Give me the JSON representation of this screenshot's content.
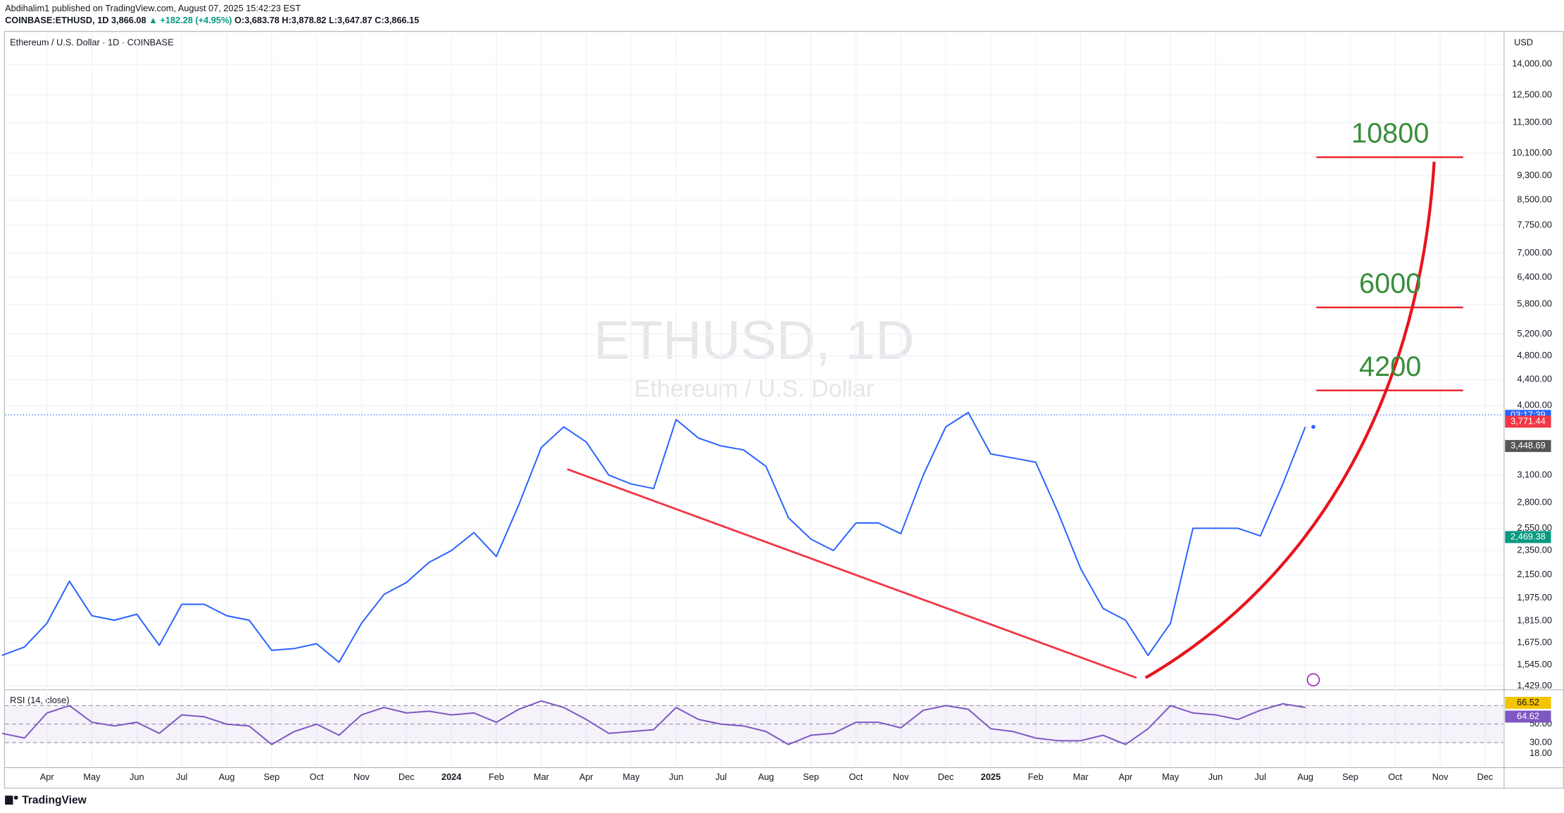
{
  "header": {
    "published": "Abdihalim1 published on TradingView.com, August 07, 2025 15:42:23 EST",
    "symbol": "COINBASE:ETHUSD, 1D",
    "price": "3,866.08",
    "change": "▲ +182.28 (+4.95%)",
    "ohlc": "O:3,683.78 H:3,878.82 L:3,647.87 C:3,866.15",
    "currency": "USD",
    "brand": "TradingView"
  },
  "chart_data": [
    {
      "type": "line",
      "title": "Ethereum / U.S. Dollar · 1D · COINBASE",
      "watermark": "ETHUSD, 1D",
      "watermark_sub": "Ethereum / U.S. Dollar",
      "color": "#2962ff",
      "log_scale": true,
      "grid": true,
      "categories": [
        null,
        null,
        "Apr",
        null,
        "May",
        null,
        "Jun",
        null,
        "Jul",
        null,
        "Aug",
        null,
        "Sep",
        null,
        "Oct",
        null,
        "Nov",
        null,
        "Dec",
        null,
        "2024",
        null,
        "Feb",
        null,
        "Mar",
        null,
        "Apr",
        null,
        "May",
        null,
        "Jun",
        null,
        "Jul",
        null,
        "Aug",
        null,
        "Sep",
        null,
        "Oct",
        null,
        "Nov",
        null,
        "Dec",
        null,
        "2025",
        null,
        "Feb",
        null,
        "Mar",
        null,
        "Apr",
        null,
        "May",
        null,
        "Jun",
        null,
        "Jul",
        null,
        "Aug",
        null,
        "Sep",
        null,
        "Oct",
        null,
        "Nov",
        null,
        "Dec",
        null
      ],
      "values": [
        1600,
        1650,
        1800,
        2100,
        1850,
        1820,
        1860,
        1660,
        1930,
        1930,
        1850,
        1820,
        1630,
        1640,
        1670,
        1560,
        1800,
        2000,
        2090,
        2250,
        2350,
        2510,
        2300,
        2780,
        3430,
        3700,
        3500,
        3100,
        3000,
        2950,
        3800,
        3550,
        3450,
        3400,
        3200,
        2650,
        2450,
        2350,
        2600,
        2600,
        2500,
        3100,
        3700,
        3900,
        3350,
        3300,
        3250,
        2700,
        2200,
        1900,
        1820,
        1600,
        1800,
        2550,
        2550,
        2550,
        2480,
        3000,
        3700,
        null,
        null,
        null,
        null,
        null,
        null,
        null,
        null,
        null
      ],
      "ylim": [
        1415,
        15700
      ],
      "yticks": [
        {
          "value": 1429,
          "label": "1,429.00"
        },
        {
          "value": 1545,
          "label": "1,545.00"
        },
        {
          "value": 1675,
          "label": "1,675.00"
        },
        {
          "value": 1815,
          "label": "1,815.00"
        },
        {
          "value": 1975,
          "label": "1,975.00"
        },
        {
          "value": 2150,
          "label": "2,150.00"
        },
        {
          "value": 2350,
          "label": "2,350.00"
        },
        {
          "value": 2550,
          "label": "2,550.00"
        },
        {
          "value": 2800,
          "label": "2,800.00"
        },
        {
          "value": 3100,
          "label": "3,100.00"
        },
        {
          "value": 4000,
          "label": "4,000.00"
        },
        {
          "value": 4400,
          "label": "4,400.00"
        },
        {
          "value": 4800,
          "label": "4,800.00"
        },
        {
          "value": 5200,
          "label": "5,200.00"
        },
        {
          "value": 5800,
          "label": "5,800.00"
        },
        {
          "value": 6400,
          "label": "6,400.00"
        },
        {
          "value": 7000,
          "label": "7,000.00"
        },
        {
          "value": 7750,
          "label": "7,750.00"
        },
        {
          "value": 8500,
          "label": "8,500.00"
        },
        {
          "value": 9300,
          "label": "9,300.00"
        },
        {
          "value": 10100,
          "label": "10,100.00"
        },
        {
          "value": 11300,
          "label": "11,300.00"
        },
        {
          "value": 12500,
          "label": "12,500.00"
        },
        {
          "value": 14000,
          "label": "14,000.00"
        }
      ],
      "last_price": 3866.08,
      "countdown": "03:17:39",
      "price_markers": [
        {
          "value": 3771.44,
          "label": "3,771.44",
          "color": "#f23645"
        },
        {
          "value": 3448.69,
          "label": "3,448.69",
          "color": "#555555"
        },
        {
          "value": 2469.38,
          "label": "2,469.38",
          "color": "#089981"
        }
      ],
      "annotations": [
        {
          "text": "10800",
          "level": 9950
        },
        {
          "text": "6000",
          "level": 5735
        },
        {
          "text": "4200",
          "level": 4230
        }
      ]
    },
    {
      "type": "line",
      "title": "RSI (14, close)",
      "color": "#7e57c2",
      "values": [
        40,
        35,
        62,
        70,
        52,
        48,
        52,
        40,
        60,
        58,
        50,
        48,
        28,
        42,
        50,
        38,
        60,
        68,
        62,
        64,
        60,
        62,
        52,
        66,
        75,
        68,
        55,
        40,
        42,
        44,
        68,
        55,
        50,
        48,
        42,
        28,
        38,
        40,
        52,
        52,
        46,
        65,
        70,
        66,
        45,
        42,
        35,
        32,
        32,
        38,
        28,
        45,
        70,
        62,
        60,
        55,
        65,
        72,
        68,
        null,
        null,
        null,
        null,
        null,
        null,
        null,
        null,
        null
      ],
      "ylim": [
        4,
        86
      ],
      "yticks": [
        {
          "value": 50,
          "label": "50.00"
        },
        {
          "value": 30,
          "label": "30.00"
        },
        {
          "value": 18,
          "label": "18.00"
        }
      ],
      "bands": [
        30,
        50,
        70
      ],
      "price_markers": [
        {
          "value": 66.52,
          "label": "66.52",
          "color": "#f5c400"
        },
        {
          "value": 64.62,
          "label": "64.62",
          "color": "#7e57c2"
        }
      ]
    }
  ]
}
